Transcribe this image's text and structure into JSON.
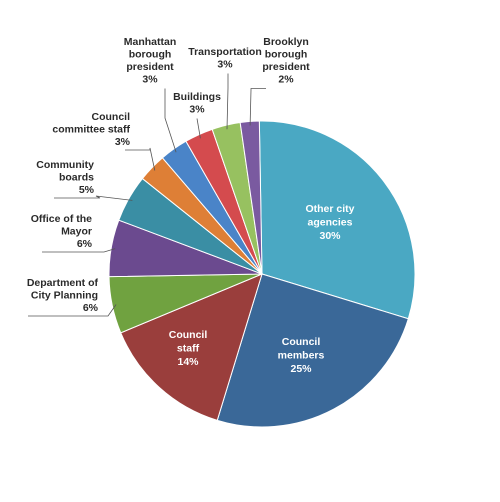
{
  "chart_data": {
    "type": "pie",
    "title": "",
    "slices": [
      {
        "name": "Other city agencies",
        "label_lines": [
          "Other city",
          "agencies"
        ],
        "value_label": "30%",
        "value": 30,
        "color": "#4aa8c3",
        "label_inside": true
      },
      {
        "name": "Council members",
        "label_lines": [
          "Council",
          "members"
        ],
        "value_label": "25%",
        "value": 25,
        "color": "#3a6898",
        "label_inside": true
      },
      {
        "name": "Council staff",
        "label_lines": [
          "Council",
          "staff"
        ],
        "value_label": "14%",
        "value": 14,
        "color": "#9a3e3c",
        "label_inside": true
      },
      {
        "name": "Department of City Planning",
        "label_lines": [
          "Department of",
          "City Planning"
        ],
        "value_label": "6%",
        "value": 6,
        "color": "#70a240",
        "label_inside": false
      },
      {
        "name": "Office of the Mayor",
        "label_lines": [
          "Office of the",
          "Mayor"
        ],
        "value_label": "6%",
        "value": 6,
        "color": "#6b4a8f",
        "label_inside": false
      },
      {
        "name": "Community boards",
        "label_lines": [
          "Community",
          "boards"
        ],
        "value_label": "5%",
        "value": 5,
        "color": "#3a8ea4",
        "label_inside": false
      },
      {
        "name": "Council committee staff",
        "label_lines": [
          "Council",
          "committee staff"
        ],
        "value_label": "3%",
        "value": 3,
        "color": "#de7f36",
        "label_inside": false
      },
      {
        "name": "Manhattan borough president",
        "label_lines": [
          "Manhattan",
          "borough",
          "president"
        ],
        "value_label": "3%",
        "value": 3,
        "color": "#4a84c8",
        "label_inside": false
      },
      {
        "name": "Buildings",
        "label_lines": [
          "Buildings"
        ],
        "value_label": "3%",
        "value": 3,
        "color": "#d44b4e",
        "label_inside": false
      },
      {
        "name": "Transportation",
        "label_lines": [
          "Transportation"
        ],
        "value_label": "3%",
        "value": 3,
        "color": "#97c160",
        "label_inside": false
      },
      {
        "name": "Brooklyn borough president",
        "label_lines": [
          "Brooklyn",
          "borough",
          "president"
        ],
        "value_label": "2%",
        "value": 2,
        "color": "#7a5aa0",
        "label_inside": false
      }
    ]
  }
}
